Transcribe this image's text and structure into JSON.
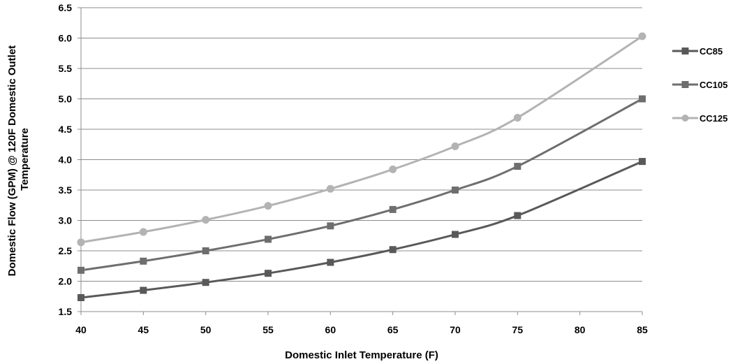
{
  "chart_data": {
    "type": "line",
    "title": "",
    "xlabel": "Domestic Inlet Temperature (F)",
    "ylabel": "Domestic Flow (GPM) @ 120F Domestic Outlet Temperature",
    "ylabel_lines": [
      "Domestic Flow (GPM) @ 120F Domestic Outlet",
      "Temperature"
    ],
    "x_ticks": [
      40,
      45,
      50,
      55,
      60,
      65,
      70,
      75,
      80,
      85
    ],
    "y_ticks": [
      "1.5",
      "2.0",
      "2.5",
      "3.0",
      "3.5",
      "4.0",
      "4.5",
      "5.0",
      "5.5",
      "6.0",
      "6.5"
    ],
    "xlim": [
      40,
      85
    ],
    "ylim": [
      1.5,
      6.5
    ],
    "grid": "horizontal",
    "legend_position": "right",
    "series": [
      {
        "name": "CC85",
        "color": "#595959",
        "marker": "square",
        "x": [
          40,
          45,
          50,
          55,
          60,
          65,
          70,
          75,
          85
        ],
        "y": [
          1.73,
          1.85,
          1.98,
          2.13,
          2.31,
          2.52,
          2.77,
          3.08,
          3.97
        ]
      },
      {
        "name": "CC105",
        "color": "#6e6e6e",
        "marker": "square",
        "x": [
          40,
          45,
          50,
          55,
          60,
          65,
          70,
          75,
          85
        ],
        "y": [
          2.18,
          2.33,
          2.5,
          2.69,
          2.91,
          3.18,
          3.5,
          3.89,
          5.0
        ]
      },
      {
        "name": "CC125",
        "color": "#b3b3b3",
        "marker": "circle",
        "x": [
          40,
          45,
          50,
          55,
          60,
          65,
          70,
          75,
          85
        ],
        "y": [
          2.64,
          2.81,
          3.01,
          3.24,
          3.52,
          3.84,
          4.22,
          4.69,
          6.03
        ]
      }
    ]
  }
}
